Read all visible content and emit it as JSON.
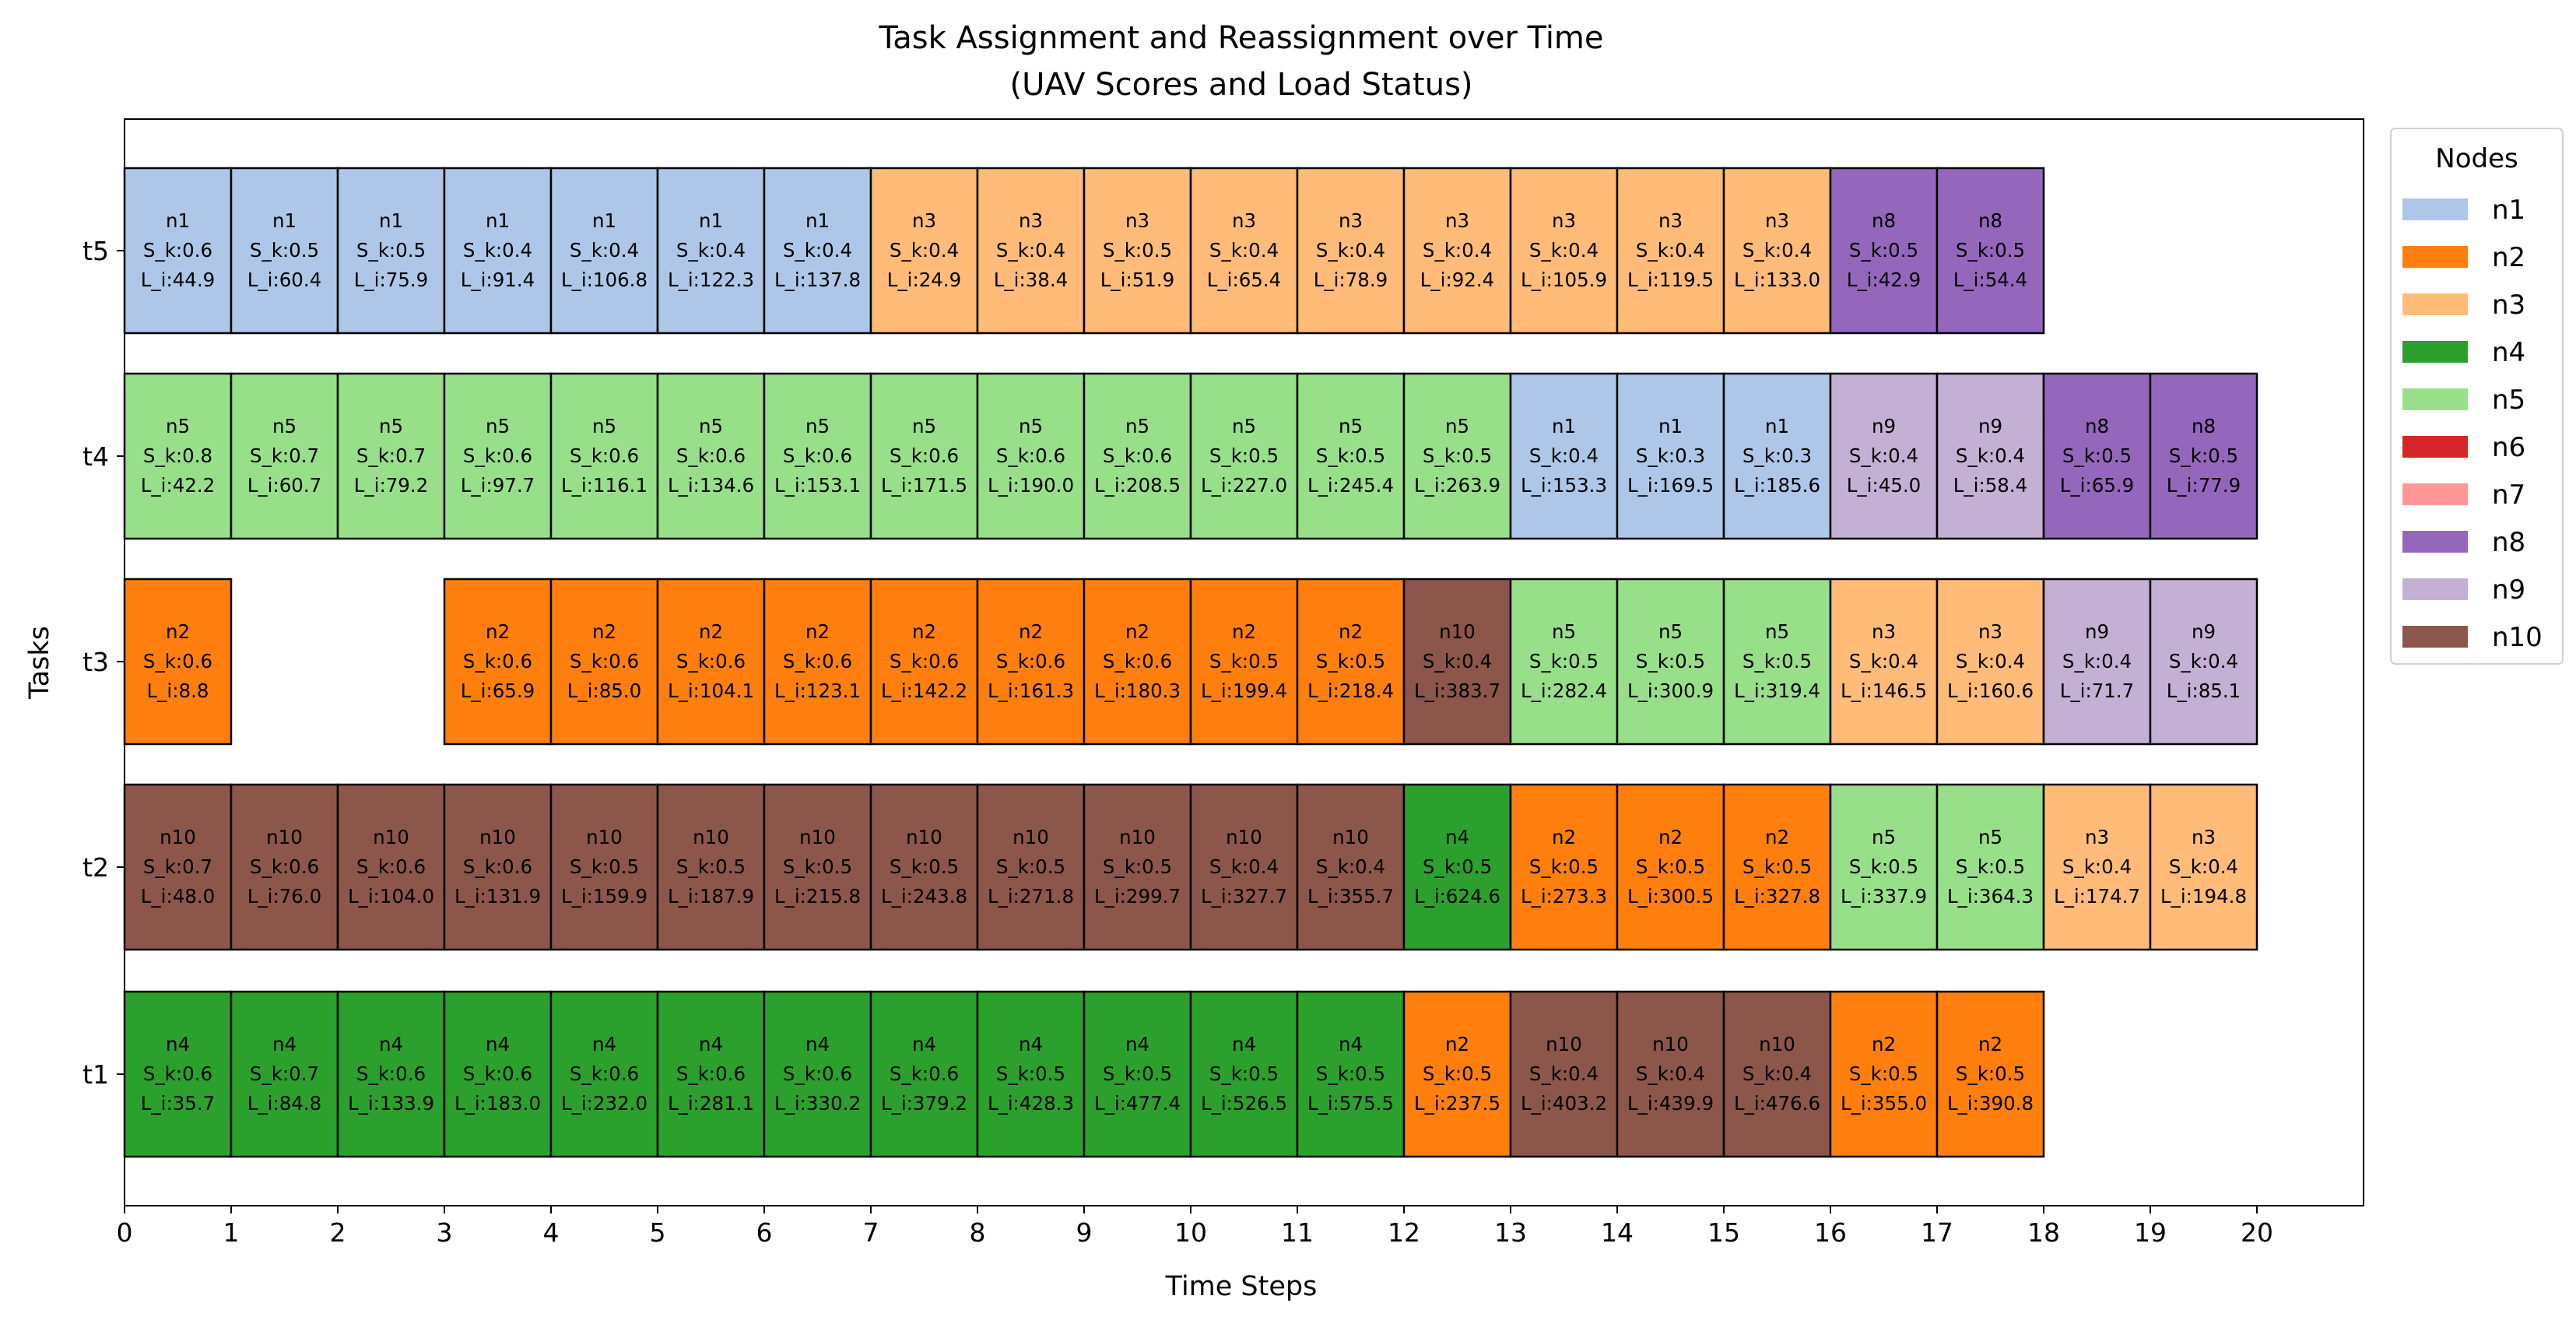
{
  "chart_data": {
    "type": "gantt",
    "title": "Task Assignment and Reassignment over Time",
    "subtitle": "(UAV Scores and Load Status)",
    "xlabel": "Time Steps",
    "ylabel": "Tasks",
    "xlim": [
      0,
      21
    ],
    "x_ticks": [
      0,
      1,
      2,
      3,
      4,
      5,
      6,
      7,
      8,
      9,
      10,
      11,
      12,
      13,
      14,
      15,
      16,
      17,
      18,
      19,
      20
    ],
    "tasks": [
      "t1",
      "t2",
      "t3",
      "t4",
      "t5"
    ],
    "legend": {
      "title": "Nodes",
      "position": "upper-right-outside",
      "items": [
        {
          "name": "n1",
          "color": "#aec7e8"
        },
        {
          "name": "n2",
          "color": "#ff7f0e"
        },
        {
          "name": "n3",
          "color": "#ffbb78"
        },
        {
          "name": "n4",
          "color": "#2ca02c"
        },
        {
          "name": "n5",
          "color": "#98df8a"
        },
        {
          "name": "n6",
          "color": "#d62728"
        },
        {
          "name": "n7",
          "color": "#ff9896"
        },
        {
          "name": "n8",
          "color": "#9467bd"
        },
        {
          "name": "n9",
          "color": "#c5b0d5"
        },
        {
          "name": "n10",
          "color": "#8c564b"
        }
      ]
    },
    "cell_format": {
      "score_prefix": "S_k:",
      "load_prefix": "L_i:"
    },
    "rows": [
      {
        "task": "t1",
        "segments": [
          {
            "t": 0,
            "node": "n4",
            "s": "0.6",
            "l": "35.7"
          },
          {
            "t": 1,
            "node": "n4",
            "s": "0.7",
            "l": "84.8"
          },
          {
            "t": 2,
            "node": "n4",
            "s": "0.6",
            "l": "133.9"
          },
          {
            "t": 3,
            "node": "n4",
            "s": "0.6",
            "l": "183.0"
          },
          {
            "t": 4,
            "node": "n4",
            "s": "0.6",
            "l": "232.0"
          },
          {
            "t": 5,
            "node": "n4",
            "s": "0.6",
            "l": "281.1"
          },
          {
            "t": 6,
            "node": "n4",
            "s": "0.6",
            "l": "330.2"
          },
          {
            "t": 7,
            "node": "n4",
            "s": "0.6",
            "l": "379.2"
          },
          {
            "t": 8,
            "node": "n4",
            "s": "0.5",
            "l": "428.3"
          },
          {
            "t": 9,
            "node": "n4",
            "s": "0.5",
            "l": "477.4"
          },
          {
            "t": 10,
            "node": "n4",
            "s": "0.5",
            "l": "526.5"
          },
          {
            "t": 11,
            "node": "n4",
            "s": "0.5",
            "l": "575.5"
          },
          {
            "t": 12,
            "node": "n2",
            "s": "0.5",
            "l": "237.5"
          },
          {
            "t": 13,
            "node": "n10",
            "s": "0.4",
            "l": "403.2"
          },
          {
            "t": 14,
            "node": "n10",
            "s": "0.4",
            "l": "439.9"
          },
          {
            "t": 15,
            "node": "n10",
            "s": "0.4",
            "l": "476.6"
          },
          {
            "t": 16,
            "node": "n2",
            "s": "0.5",
            "l": "355.0"
          },
          {
            "t": 17,
            "node": "n2",
            "s": "0.5",
            "l": "390.8"
          }
        ]
      },
      {
        "task": "t2",
        "segments": [
          {
            "t": 0,
            "node": "n10",
            "s": "0.7",
            "l": "48.0"
          },
          {
            "t": 1,
            "node": "n10",
            "s": "0.6",
            "l": "76.0"
          },
          {
            "t": 2,
            "node": "n10",
            "s": "0.6",
            "l": "104.0"
          },
          {
            "t": 3,
            "node": "n10",
            "s": "0.6",
            "l": "131.9"
          },
          {
            "t": 4,
            "node": "n10",
            "s": "0.5",
            "l": "159.9"
          },
          {
            "t": 5,
            "node": "n10",
            "s": "0.5",
            "l": "187.9"
          },
          {
            "t": 6,
            "node": "n10",
            "s": "0.5",
            "l": "215.8"
          },
          {
            "t": 7,
            "node": "n10",
            "s": "0.5",
            "l": "243.8"
          },
          {
            "t": 8,
            "node": "n10",
            "s": "0.5",
            "l": "271.8"
          },
          {
            "t": 9,
            "node": "n10",
            "s": "0.5",
            "l": "299.7"
          },
          {
            "t": 10,
            "node": "n10",
            "s": "0.4",
            "l": "327.7"
          },
          {
            "t": 11,
            "node": "n10",
            "s": "0.4",
            "l": "355.7"
          },
          {
            "t": 12,
            "node": "n4",
            "s": "0.5",
            "l": "624.6"
          },
          {
            "t": 13,
            "node": "n2",
            "s": "0.5",
            "l": "273.3"
          },
          {
            "t": 14,
            "node": "n2",
            "s": "0.5",
            "l": "300.5"
          },
          {
            "t": 15,
            "node": "n2",
            "s": "0.5",
            "l": "327.8"
          },
          {
            "t": 16,
            "node": "n5",
            "s": "0.5",
            "l": "337.9"
          },
          {
            "t": 17,
            "node": "n5",
            "s": "0.5",
            "l": "364.3"
          },
          {
            "t": 18,
            "node": "n3",
            "s": "0.4",
            "l": "174.7"
          },
          {
            "t": 19,
            "node": "n3",
            "s": "0.4",
            "l": "194.8"
          }
        ]
      },
      {
        "task": "t3",
        "segments": [
          {
            "t": 0,
            "node": "n2",
            "s": "0.6",
            "l": "8.8"
          },
          {
            "t": 3,
            "node": "n2",
            "s": "0.6",
            "l": "65.9"
          },
          {
            "t": 4,
            "node": "n2",
            "s": "0.6",
            "l": "85.0"
          },
          {
            "t": 5,
            "node": "n2",
            "s": "0.6",
            "l": "104.1"
          },
          {
            "t": 6,
            "node": "n2",
            "s": "0.6",
            "l": "123.1"
          },
          {
            "t": 7,
            "node": "n2",
            "s": "0.6",
            "l": "142.2"
          },
          {
            "t": 8,
            "node": "n2",
            "s": "0.6",
            "l": "161.3"
          },
          {
            "t": 9,
            "node": "n2",
            "s": "0.6",
            "l": "180.3"
          },
          {
            "t": 10,
            "node": "n2",
            "s": "0.5",
            "l": "199.4"
          },
          {
            "t": 11,
            "node": "n2",
            "s": "0.5",
            "l": "218.4"
          },
          {
            "t": 12,
            "node": "n10",
            "s": "0.4",
            "l": "383.7"
          },
          {
            "t": 13,
            "node": "n5",
            "s": "0.5",
            "l": "282.4"
          },
          {
            "t": 14,
            "node": "n5",
            "s": "0.5",
            "l": "300.9"
          },
          {
            "t": 15,
            "node": "n5",
            "s": "0.5",
            "l": "319.4"
          },
          {
            "t": 16,
            "node": "n3",
            "s": "0.4",
            "l": "146.5"
          },
          {
            "t": 17,
            "node": "n3",
            "s": "0.4",
            "l": "160.6"
          },
          {
            "t": 18,
            "node": "n9",
            "s": "0.4",
            "l": "71.7"
          },
          {
            "t": 19,
            "node": "n9",
            "s": "0.4",
            "l": "85.1"
          }
        ]
      },
      {
        "task": "t4",
        "segments": [
          {
            "t": 0,
            "node": "n5",
            "s": "0.8",
            "l": "42.2"
          },
          {
            "t": 1,
            "node": "n5",
            "s": "0.7",
            "l": "60.7"
          },
          {
            "t": 2,
            "node": "n5",
            "s": "0.7",
            "l": "79.2"
          },
          {
            "t": 3,
            "node": "n5",
            "s": "0.6",
            "l": "97.7"
          },
          {
            "t": 4,
            "node": "n5",
            "s": "0.6",
            "l": "116.1"
          },
          {
            "t": 5,
            "node": "n5",
            "s": "0.6",
            "l": "134.6"
          },
          {
            "t": 6,
            "node": "n5",
            "s": "0.6",
            "l": "153.1"
          },
          {
            "t": 7,
            "node": "n5",
            "s": "0.6",
            "l": "171.5"
          },
          {
            "t": 8,
            "node": "n5",
            "s": "0.6",
            "l": "190.0"
          },
          {
            "t": 9,
            "node": "n5",
            "s": "0.6",
            "l": "208.5"
          },
          {
            "t": 10,
            "node": "n5",
            "s": "0.5",
            "l": "227.0"
          },
          {
            "t": 11,
            "node": "n5",
            "s": "0.5",
            "l": "245.4"
          },
          {
            "t": 12,
            "node": "n5",
            "s": "0.5",
            "l": "263.9"
          },
          {
            "t": 13,
            "node": "n1",
            "s": "0.4",
            "l": "153.3"
          },
          {
            "t": 14,
            "node": "n1",
            "s": "0.3",
            "l": "169.5"
          },
          {
            "t": 15,
            "node": "n1",
            "s": "0.3",
            "l": "185.6"
          },
          {
            "t": 16,
            "node": "n9",
            "s": "0.4",
            "l": "45.0"
          },
          {
            "t": 17,
            "node": "n9",
            "s": "0.4",
            "l": "58.4"
          },
          {
            "t": 18,
            "node": "n8",
            "s": "0.5",
            "l": "65.9"
          },
          {
            "t": 19,
            "node": "n8",
            "s": "0.5",
            "l": "77.9"
          }
        ]
      },
      {
        "task": "t5",
        "segments": [
          {
            "t": 0,
            "node": "n1",
            "s": "0.6",
            "l": "44.9"
          },
          {
            "t": 1,
            "node": "n1",
            "s": "0.5",
            "l": "60.4"
          },
          {
            "t": 2,
            "node": "n1",
            "s": "0.5",
            "l": "75.9"
          },
          {
            "t": 3,
            "node": "n1",
            "s": "0.4",
            "l": "91.4"
          },
          {
            "t": 4,
            "node": "n1",
            "s": "0.4",
            "l": "106.8"
          },
          {
            "t": 5,
            "node": "n1",
            "s": "0.4",
            "l": "122.3"
          },
          {
            "t": 6,
            "node": "n1",
            "s": "0.4",
            "l": "137.8"
          },
          {
            "t": 7,
            "node": "n3",
            "s": "0.4",
            "l": "24.9"
          },
          {
            "t": 8,
            "node": "n3",
            "s": "0.4",
            "l": "38.4"
          },
          {
            "t": 9,
            "node": "n3",
            "s": "0.5",
            "l": "51.9"
          },
          {
            "t": 10,
            "node": "n3",
            "s": "0.4",
            "l": "65.4"
          },
          {
            "t": 11,
            "node": "n3",
            "s": "0.4",
            "l": "78.9"
          },
          {
            "t": 12,
            "node": "n3",
            "s": "0.4",
            "l": "92.4"
          },
          {
            "t": 13,
            "node": "n3",
            "s": "0.4",
            "l": "105.9"
          },
          {
            "t": 14,
            "node": "n3",
            "s": "0.4",
            "l": "119.5"
          },
          {
            "t": 15,
            "node": "n3",
            "s": "0.4",
            "l": "133.0"
          },
          {
            "t": 16,
            "node": "n8",
            "s": "0.5",
            "l": "42.9"
          },
          {
            "t": 17,
            "node": "n8",
            "s": "0.5",
            "l": "54.4"
          }
        ]
      }
    ]
  }
}
